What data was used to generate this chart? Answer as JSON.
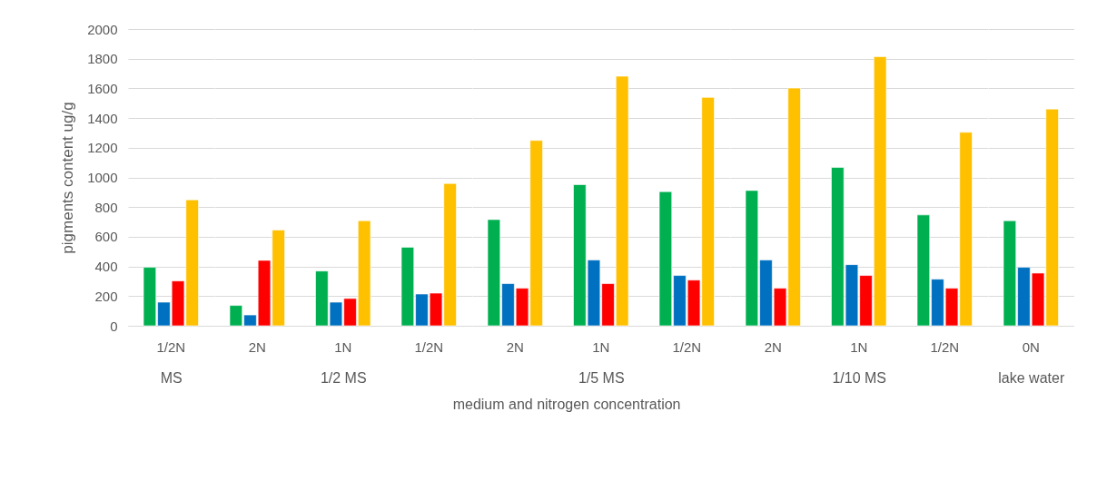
{
  "chart_data": [
    {
      "type": "bar",
      "categories": [
        "1/2N"
      ],
      "xlabel": "MS",
      "ylabel": "pigments content ug/g",
      "ylim": [
        0,
        2000
      ],
      "yticks": [
        0,
        200,
        400,
        600,
        800,
        1000,
        1200,
        1400,
        1600,
        1800,
        2000
      ],
      "grid": "y",
      "annotations": [
        "medium and nitrogen concentration"
      ],
      "series": [
        {
          "color": "#00b050",
          "values": [
            394
          ]
        },
        {
          "color": "#0070c0",
          "values": [
            159
          ]
        },
        {
          "color": "#ff0000",
          "values": [
            302
          ]
        },
        {
          "color": "#ffc000",
          "values": [
            849
          ]
        }
      ]
    },
    {
      "type": "bar",
      "categories": [
        "2N",
        "1N",
        "1/2N"
      ],
      "xlabel": "1/2 MS",
      "ylim": [
        0,
        2000
      ],
      "yticks": [
        0,
        200,
        400,
        600,
        800,
        1000,
        1200,
        1400,
        1600,
        1800,
        2000
      ],
      "grid": "y",
      "tick_labels": "x",
      "series": [
        {
          "color": "#00b050",
          "values": [
            137,
            369,
            529
          ]
        },
        {
          "color": "#0070c0",
          "values": [
            73,
            159,
            214
          ]
        },
        {
          "color": "#ff0000",
          "values": [
            441,
            184,
            220
          ]
        },
        {
          "color": "#ffc000",
          "values": [
            645,
            708,
            959
          ]
        }
      ]
    },
    {
      "type": "bar",
      "categories": [
        "2N",
        "1N",
        "1/2N"
      ],
      "xlabel": "1/5 MS",
      "ylim": [
        0,
        2000
      ],
      "yticks": [
        0,
        200,
        400,
        600,
        800,
        1000,
        1200,
        1400,
        1600,
        1800,
        2000
      ],
      "grid": "y",
      "tick_labels": "x",
      "series": [
        {
          "color": "#00b050",
          "values": [
            716,
            951,
            904
          ]
        },
        {
          "color": "#0070c0",
          "values": [
            284,
            443,
            339
          ]
        },
        {
          "color": "#ff0000",
          "values": [
            253,
            284,
            308
          ]
        },
        {
          "color": "#ffc000",
          "values": [
            1249,
            1682,
            1539
          ]
        }
      ]
    },
    {
      "type": "bar",
      "categories": [
        "2N",
        "1N",
        "1/2N"
      ],
      "xlabel": "1/10 MS",
      "ylim": [
        0,
        2000
      ],
      "yticks": [
        0,
        200,
        400,
        600,
        800,
        1000,
        1200,
        1400,
        1600,
        1800,
        2000
      ],
      "grid": "y",
      "tick_labels": "x",
      "series": [
        {
          "color": "#00b050",
          "values": [
            912,
            1067,
            747
          ]
        },
        {
          "color": "#0070c0",
          "values": [
            443,
            412,
            314
          ]
        },
        {
          "color": "#ff0000",
          "values": [
            253,
            339,
            253
          ]
        },
        {
          "color": "#ffc000",
          "values": [
            1602,
            1814,
            1304
          ]
        }
      ]
    },
    {
      "type": "bar",
      "categories": [
        "0N"
      ],
      "xlabel": "lake water",
      "ylim": [
        0,
        2000
      ],
      "yticks": [
        0,
        200,
        400,
        600,
        800,
        1000,
        1200,
        1400,
        1600,
        1800,
        2000
      ],
      "grid": "y",
      "tick_labels": "x",
      "series": [
        {
          "color": "#00b050",
          "values": [
            708
          ]
        },
        {
          "color": "#0070c0",
          "values": [
            394
          ]
        },
        {
          "color": "#ff0000",
          "values": [
            355
          ]
        },
        {
          "color": "#ffc000",
          "values": [
            1461
          ]
        }
      ]
    }
  ]
}
